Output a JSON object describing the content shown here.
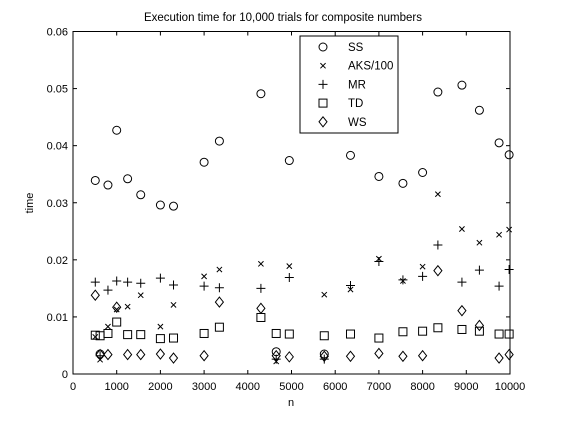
{
  "chart_data": {
    "type": "scatter",
    "title": "Execution time for 10,000 trials for composite numbers",
    "xlabel": "n",
    "ylabel": "time",
    "xlim": [
      0,
      10000
    ],
    "ylim": [
      0,
      0.06
    ],
    "xticks": [
      0,
      1000,
      2000,
      3000,
      4000,
      5000,
      6000,
      7000,
      8000,
      9000,
      10000
    ],
    "xtick_labels": [
      "0",
      "1000",
      "2000",
      "3000",
      "4000",
      "5000",
      "6000",
      "7000",
      "8000",
      "9000",
      "10000"
    ],
    "yticks": [
      0,
      0.01,
      0.02,
      0.03,
      0.04,
      0.05,
      0.06
    ],
    "ytick_labels": [
      "0",
      "0.01",
      "0.02",
      "0.03",
      "0.04",
      "0.05",
      "0.06"
    ],
    "grid": false,
    "legend_position": "top-center",
    "series": [
      {
        "name": "SS",
        "marker": "circle",
        "points": [
          [
            510,
            0.0339
          ],
          [
            620,
            0.0035
          ],
          [
            800,
            0.0331
          ],
          [
            1000,
            0.0427
          ],
          [
            1250,
            0.0342
          ],
          [
            1550,
            0.0314
          ],
          [
            2000,
            0.0296
          ],
          [
            2300,
            0.0294
          ],
          [
            3000,
            0.0371
          ],
          [
            3350,
            0.0408
          ],
          [
            4300,
            0.0491
          ],
          [
            4650,
            0.0039
          ],
          [
            4950,
            0.0374
          ],
          [
            5750,
            0.0035
          ],
          [
            6350,
            0.0383
          ],
          [
            7000,
            0.0346
          ],
          [
            7550,
            0.0334
          ],
          [
            8000,
            0.0353
          ],
          [
            8350,
            0.0494
          ],
          [
            8900,
            0.0506
          ],
          [
            9300,
            0.0462
          ],
          [
            9750,
            0.0405
          ],
          [
            9980,
            0.0384
          ]
        ]
      },
      {
        "name": "AKS/100",
        "marker": "x",
        "points": [
          [
            510,
            0.0065
          ],
          [
            620,
            0.0025
          ],
          [
            800,
            0.0083
          ],
          [
            1000,
            0.0113
          ],
          [
            1250,
            0.0118
          ],
          [
            1550,
            0.0138
          ],
          [
            2000,
            0.0083
          ],
          [
            2300,
            0.0121
          ],
          [
            3000,
            0.0171
          ],
          [
            3350,
            0.0183
          ],
          [
            4300,
            0.0193
          ],
          [
            4650,
            0.0022
          ],
          [
            4950,
            0.0189
          ],
          [
            5750,
            0.0139
          ],
          [
            6350,
            0.0148
          ],
          [
            7000,
            0.0202
          ],
          [
            7550,
            0.0163
          ],
          [
            8000,
            0.0188
          ],
          [
            8350,
            0.0315
          ],
          [
            8900,
            0.0254
          ],
          [
            9300,
            0.023
          ],
          [
            9750,
            0.0244
          ],
          [
            9980,
            0.0253
          ]
        ]
      },
      {
        "name": "MR",
        "marker": "plus",
        "points": [
          [
            510,
            0.0161
          ],
          [
            620,
            0.0032
          ],
          [
            800,
            0.0147
          ],
          [
            1000,
            0.0163
          ],
          [
            1250,
            0.0161
          ],
          [
            1550,
            0.0159
          ],
          [
            2000,
            0.0168
          ],
          [
            2300,
            0.0156
          ],
          [
            3000,
            0.0154
          ],
          [
            3350,
            0.0151
          ],
          [
            4300,
            0.015
          ],
          [
            4650,
            0.0026
          ],
          [
            4950,
            0.0169
          ],
          [
            5750,
            0.0026
          ],
          [
            6350,
            0.0155
          ],
          [
            7000,
            0.0197
          ],
          [
            7550,
            0.0165
          ],
          [
            8000,
            0.0171
          ],
          [
            8350,
            0.0226
          ],
          [
            8900,
            0.0161
          ],
          [
            9300,
            0.0182
          ],
          [
            9750,
            0.0154
          ],
          [
            9980,
            0.0183
          ]
        ]
      },
      {
        "name": "TD",
        "marker": "square",
        "points": [
          [
            510,
            0.0068
          ],
          [
            620,
            0.0067
          ],
          [
            800,
            0.0071
          ],
          [
            1000,
            0.0091
          ],
          [
            1250,
            0.0069
          ],
          [
            1550,
            0.0069
          ],
          [
            2000,
            0.0062
          ],
          [
            2300,
            0.0063
          ],
          [
            3000,
            0.0071
          ],
          [
            3350,
            0.0082
          ],
          [
            4300,
            0.0099
          ],
          [
            4650,
            0.0071
          ],
          [
            4950,
            0.007
          ],
          [
            5750,
            0.0067
          ],
          [
            6350,
            0.007
          ],
          [
            7000,
            0.0063
          ],
          [
            7550,
            0.0074
          ],
          [
            8000,
            0.0075
          ],
          [
            8350,
            0.0081
          ],
          [
            8900,
            0.0078
          ],
          [
            9300,
            0.0075
          ],
          [
            9750,
            0.007
          ],
          [
            9980,
            0.007
          ]
        ]
      },
      {
        "name": "WS",
        "marker": "diamond",
        "points": [
          [
            510,
            0.0138
          ],
          [
            620,
            0.0034
          ],
          [
            800,
            0.0034
          ],
          [
            1000,
            0.0117
          ],
          [
            1250,
            0.0034
          ],
          [
            1550,
            0.0034
          ],
          [
            2000,
            0.0035
          ],
          [
            2300,
            0.0028
          ],
          [
            3000,
            0.0032
          ],
          [
            3350,
            0.0126
          ],
          [
            4300,
            0.0115
          ],
          [
            4650,
            0.0032
          ],
          [
            4950,
            0.003
          ],
          [
            5750,
            0.0031
          ],
          [
            6350,
            0.0031
          ],
          [
            7000,
            0.0036
          ],
          [
            7550,
            0.0031
          ],
          [
            8000,
            0.0032
          ],
          [
            8350,
            0.0181
          ],
          [
            8900,
            0.0111
          ],
          [
            9300,
            0.0085
          ],
          [
            9750,
            0.0028
          ],
          [
            9980,
            0.0034
          ]
        ]
      }
    ]
  }
}
